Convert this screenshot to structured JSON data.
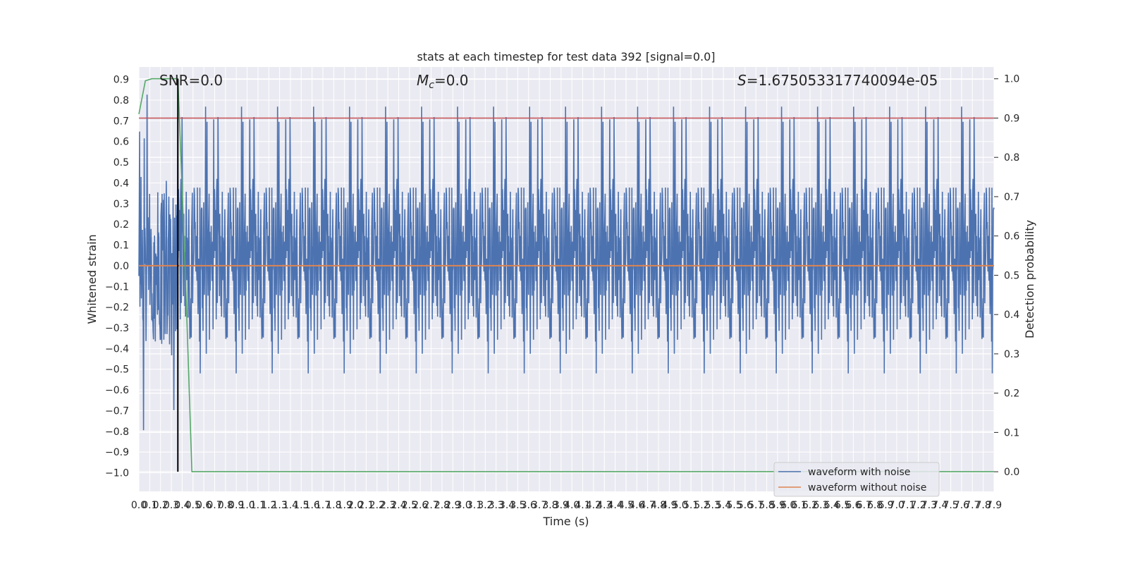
{
  "chart_data": {
    "type": "line",
    "title": "stats at each timestep for test data 392 [signal=0.0]",
    "xlabel": "Time (s)",
    "ylabel_left": "Whitened strain",
    "ylabel_right": "Detection probability",
    "xlim": [
      0.0,
      7.9
    ],
    "ylim_left": [
      -1.09,
      0.96
    ],
    "ylim_right": [
      -0.05,
      1.03
    ],
    "x_ticks": [
      "0.0",
      "0.1",
      "0.2",
      "0.3",
      "0.4",
      "0.5",
      "0.6",
      "0.7",
      "0.8",
      "0.9",
      "1.0",
      "1.1",
      "1.2",
      "1.3",
      "1.4",
      "1.5",
      "1.6",
      "1.7",
      "1.8",
      "1.9",
      "2.0",
      "2.1",
      "2.2",
      "2.3",
      "2.4",
      "2.5",
      "2.6",
      "2.7",
      "2.8",
      "2.9",
      "3.0",
      "3.1",
      "3.2",
      "3.3",
      "3.4",
      "3.5",
      "3.6",
      "3.7",
      "3.8",
      "3.9",
      "4.0",
      "4.1",
      "4.2",
      "4.3",
      "4.4",
      "4.5",
      "4.6",
      "4.7",
      "4.8",
      "4.9",
      "5.0",
      "5.1",
      "5.2",
      "5.3",
      "5.4",
      "5.5",
      "5.6",
      "5.7",
      "5.8",
      "5.9",
      "6.0",
      "6.1",
      "6.2",
      "6.3",
      "6.4",
      "6.5",
      "6.6",
      "6.7",
      "6.8",
      "6.9",
      "7.0",
      "7.1",
      "7.2",
      "7.3",
      "7.4",
      "7.5",
      "7.6",
      "7.7",
      "7.8",
      "7.9"
    ],
    "y_ticks_left": [
      "0.9",
      "0.8",
      "0.7",
      "0.6",
      "0.5",
      "0.4",
      "0.3",
      "0.2",
      "0.1",
      "0.0",
      "−0.1",
      "−0.2",
      "−0.3",
      "−0.4",
      "−0.5",
      "−0.6",
      "−0.7",
      "−0.8",
      "−0.9",
      "−1.0"
    ],
    "y_ticks_right": [
      "1.0",
      "0.9",
      "0.8",
      "0.7",
      "0.6",
      "0.5",
      "0.4",
      "0.3",
      "0.2",
      "0.1",
      "0.0"
    ],
    "annotations": {
      "snr": "SNR=0.0",
      "mc_symbol": "M",
      "mc_sub": "c",
      "mc_value": "=0.0",
      "s_symbol": "S",
      "s_value": "=1.675053317740094e-05"
    },
    "threshold_right": 0.9,
    "marker_time": 0.36,
    "series": [
      {
        "name": "waveform with noise",
        "color": "#4c72b0",
        "axis": "left",
        "style": "noise",
        "amplitude_typical": 0.38,
        "peak_max": 0.88,
        "peak_min": -1.0
      },
      {
        "name": "waveform without noise",
        "color": "#dd8452",
        "axis": "left",
        "value": 0.0
      },
      {
        "name": "detection probability",
        "color": "#55a868",
        "axis": "right",
        "x": [
          0.0,
          0.06,
          0.12,
          0.2,
          0.28,
          0.36,
          0.43,
          0.49,
          7.9
        ],
        "y": [
          0.91,
          0.995,
          1.0,
          1.0,
          1.0,
          1.0,
          0.5,
          0.0,
          0.0
        ]
      }
    ],
    "colors": {
      "threshold": "#c44e52",
      "marker": "#000000",
      "plot_bg": "#eaeaf2",
      "grid": "#ffffff"
    },
    "legend": {
      "placement": "lower-right",
      "entries": [
        "waveform with noise",
        "waveform without noise"
      ]
    }
  }
}
